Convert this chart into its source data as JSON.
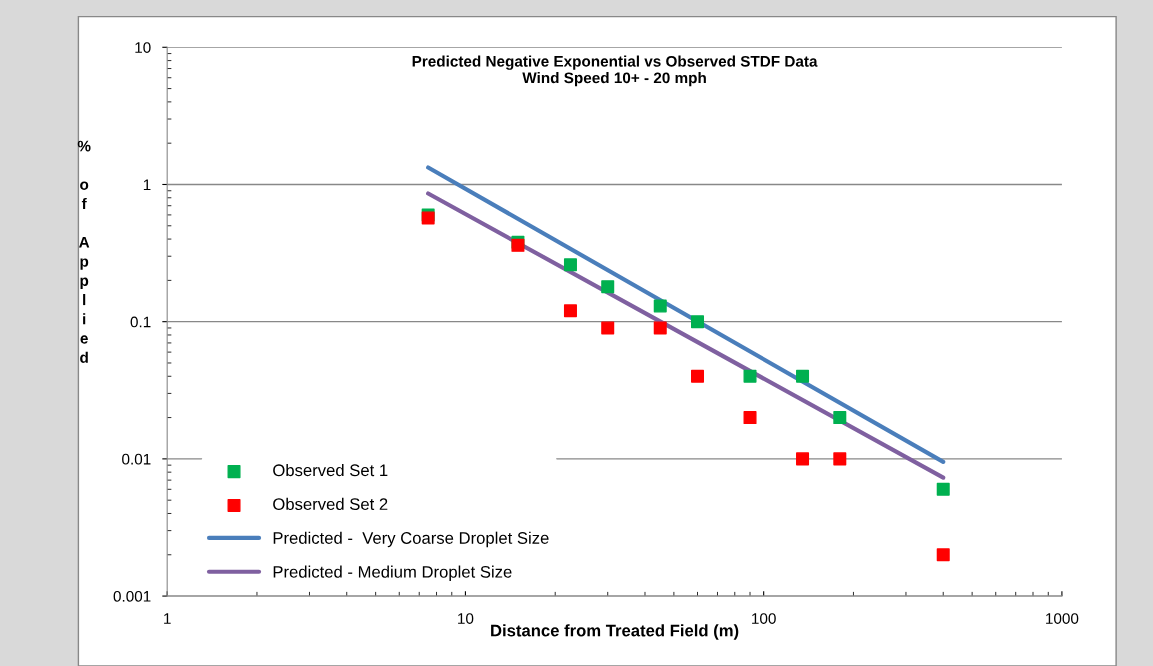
{
  "chart_data": {
    "type": "scatter",
    "title": "Predicted Negative Exponential vs Observed STDF Data\nWind Speed 10+ - 20 mph",
    "xlabel": "Distance from Treated Field (m)",
    "ylabel": "% of Applied",
    "log": "xy",
    "xlim": [
      1,
      1000
    ],
    "xticks": [
      1,
      10,
      100,
      1000
    ],
    "ylim": [
      0.001,
      10
    ],
    "yticks": [
      0.001,
      0.01,
      0.1,
      1,
      10
    ],
    "grid": "y",
    "legend": "bottom left",
    "marker": "square",
    "series": [
      {
        "name": "Observed Set 1",
        "color": "#00b050",
        "x": [
          7.5,
          15,
          22.5,
          30,
          45,
          60,
          90,
          135,
          180,
          400
        ],
        "values": [
          0.6,
          0.38,
          0.26,
          0.18,
          0.13,
          0.1,
          0.04,
          0.04,
          0.02,
          0.006
        ]
      },
      {
        "name": "Observed Set 2",
        "color": "#ff0000",
        "x": [
          7.5,
          15,
          22.5,
          30,
          45,
          60,
          90,
          135,
          180,
          400
        ],
        "values": [
          0.57,
          0.36,
          0.12,
          0.09,
          0.09,
          0.04,
          0.02,
          0.01,
          0.01,
          0.002
        ]
      },
      {
        "name": "Predicted -  Very Coarse Droplet Size",
        "type": "line",
        "marker": "none",
        "color": "#4a7ebb",
        "x": [
          7.5,
          400
        ],
        "values": [
          1.33,
          0.0095
        ]
      },
      {
        "name": "Predicted - Medium Droplet Size",
        "type": "line",
        "marker": "none",
        "color": "#7f60a0",
        "x": [
          7.5,
          400
        ],
        "values": [
          0.86,
          0.0073
        ]
      }
    ]
  }
}
